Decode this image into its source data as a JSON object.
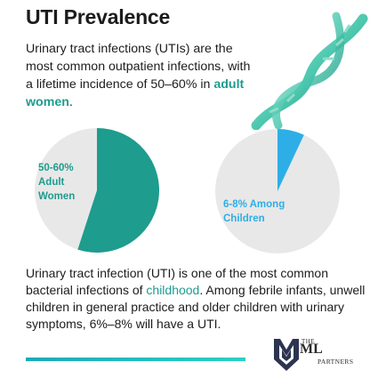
{
  "title": "UTI Prevalence",
  "intro": {
    "text_before": "Urinary tract infections (UTIs) are the most common outpatient infections, with a lifetime incidence of 50–60% in ",
    "highlight": "adult women",
    "text_after": "."
  },
  "body": {
    "text_before": "Urinary tract infection (UTI) is one of the most common bacterial infections of ",
    "highlight": "childhood",
    "text_after": ". Among febrile infants, unwell children in general practice and older children with urinary symptoms, 6%–8% will have a UTI."
  },
  "logo": {
    "the": "THE",
    "ml": "ML",
    "partners": "PARTNERS"
  },
  "colors": {
    "teal": "#1e9c8e",
    "blue": "#2eaee6",
    "grey": "#e8e8e8"
  },
  "chart_data": [
    {
      "type": "pie",
      "title": "",
      "slices": [
        {
          "label": "50-60% Adult Women",
          "value": 55,
          "color": "#1e9c8e"
        },
        {
          "label": "",
          "value": 45,
          "color": "#e8e8e8"
        }
      ],
      "label_lines": [
        "50-60%",
        "Adult",
        "Women"
      ]
    },
    {
      "type": "pie",
      "title": "",
      "slices": [
        {
          "label": "6-8% Among Children",
          "value": 7,
          "color": "#2eaee6"
        },
        {
          "label": "",
          "value": 93,
          "color": "#e8e8e8"
        }
      ],
      "label_lines": [
        "6-8% Among",
        "Children"
      ]
    }
  ]
}
